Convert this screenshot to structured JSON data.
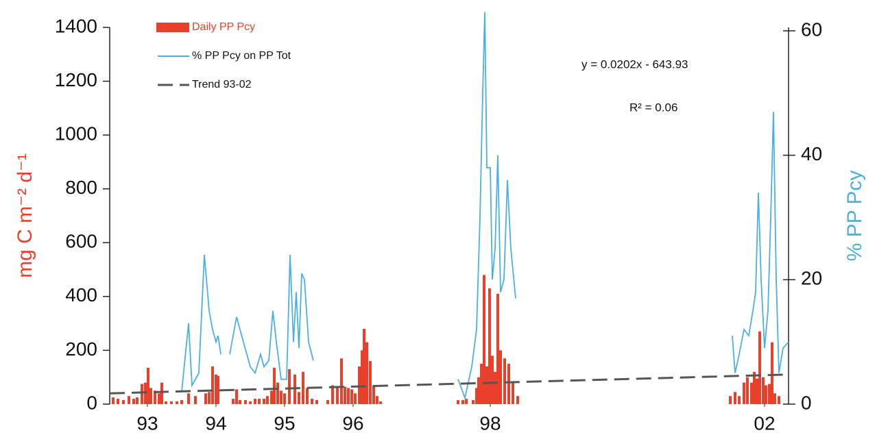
{
  "chart_data": {
    "type": "bar-line",
    "ylabel": "mg C m⁻² d⁻¹",
    "y2label": "% PP Pcy",
    "annotations": [
      "y = 0.0202x - 643.93",
      "R² = 0.06"
    ],
    "legend": "upper left",
    "xlim": [
      1992.45,
      2002.35
    ],
    "xticks": [
      {
        "value": 1993,
        "label": "93"
      },
      {
        "value": 1994,
        "label": "94"
      },
      {
        "value": 1995,
        "label": "95"
      },
      {
        "value": 1996,
        "label": "96"
      },
      {
        "value": 1998,
        "label": "98"
      },
      {
        "value": 2002,
        "label": "02"
      }
    ],
    "ylim": [
      0,
      1400
    ],
    "yticks": [
      0,
      200,
      400,
      600,
      800,
      1000,
      1200,
      1400
    ],
    "y2lim": [
      0,
      60
    ],
    "y2ticks": [
      0,
      20,
      40,
      60
    ],
    "series": [
      {
        "name": "Daily PP Pcy",
        "type": "bar",
        "color": "#e8402a",
        "x": [
          1992.5,
          1992.57,
          1992.65,
          1992.73,
          1992.8,
          1992.85,
          1992.92,
          1992.97,
          1993.01,
          1993.05,
          1993.11,
          1993.17,
          1993.21,
          1993.27,
          1993.35,
          1993.43,
          1993.5,
          1993.6,
          1993.7,
          1993.85,
          1993.9,
          1993.95,
          1994.0,
          1994.03,
          1994.25,
          1994.3,
          1994.35,
          1994.43,
          1994.5,
          1994.57,
          1994.63,
          1994.7,
          1994.75,
          1994.81,
          1994.85,
          1994.9,
          1994.95,
          1995.0,
          1995.07,
          1995.15,
          1995.21,
          1995.27,
          1995.33,
          1995.4,
          1995.47,
          1995.63,
          1995.7,
          1995.77,
          1995.83,
          1995.88,
          1995.93,
          1995.98,
          1996.03,
          1996.09,
          1996.13,
          1996.16,
          1996.2,
          1996.25,
          1996.3,
          1996.35,
          1996.4,
          1997.53,
          1997.6,
          1997.65,
          1997.75,
          1997.8,
          1997.83,
          1997.87,
          1997.91,
          1997.95,
          1997.99,
          1998.03,
          1998.07,
          1998.11,
          1998.15,
          1998.21,
          1998.27,
          1998.33,
          1998.4,
          2001.5,
          2001.57,
          2001.63,
          2001.7,
          2001.75,
          2001.81,
          2001.85,
          2001.89,
          2001.93,
          2001.98,
          2002.02,
          2002.07,
          2002.11,
          2002.15,
          2002.21
        ],
        "values": [
          25,
          20,
          15,
          30,
          20,
          25,
          75,
          80,
          135,
          60,
          50,
          40,
          80,
          10,
          10,
          10,
          15,
          40,
          30,
          40,
          45,
          140,
          110,
          105,
          20,
          55,
          15,
          15,
          10,
          20,
          20,
          20,
          30,
          50,
          135,
          80,
          50,
          40,
          130,
          110,
          45,
          120,
          60,
          20,
          15,
          15,
          70,
          60,
          170,
          65,
          60,
          55,
          40,
          140,
          200,
          280,
          230,
          160,
          70,
          30,
          10,
          15,
          15,
          20,
          15,
          60,
          100,
          150,
          480,
          140,
          430,
          180,
          120,
          410,
          200,
          170,
          150,
          80,
          30,
          30,
          45,
          30,
          80,
          100,
          80,
          120,
          95,
          270,
          100,
          70,
          75,
          230,
          40,
          30
        ]
      },
      {
        "name": "% PP Pcy on PP Tot",
        "type": "line",
        "axis": "y2",
        "color": "#4ab0e0",
        "x": [
          1993.5,
          1993.6,
          1993.65,
          1993.75,
          1993.83,
          1993.9,
          1993.95,
          1994.0,
          1994.03,
          1994.07,
          1994.12,
          1994.2,
          1994.3,
          1994.4,
          1994.5,
          1994.57,
          1994.65,
          1994.7,
          1994.77,
          1994.83,
          1994.88,
          1994.95,
          1995.03,
          1995.08,
          1995.13,
          1995.17,
          1995.21,
          1995.25,
          1995.29,
          1995.35,
          1995.42,
          1996.5,
          1997.53,
          1997.63,
          1997.73,
          1997.8,
          1997.85,
          1997.89,
          1997.92,
          1997.95,
          1998.0,
          1998.03,
          1998.07,
          1998.11,
          1998.15,
          1998.2,
          1998.25,
          1998.3,
          1998.37,
          2000.0,
          2001.53,
          2001.57,
          2001.63,
          2001.7,
          2001.77,
          2001.83,
          2001.87,
          2001.91,
          2001.95,
          2002.0,
          2002.05,
          2002.09,
          2002.13,
          2002.17,
          2002.21,
          2002.27,
          2002.35
        ],
        "values": [
          2,
          13,
          3,
          5,
          24,
          15,
          12,
          10,
          11,
          8,
          null,
          8,
          14,
          10,
          6,
          5,
          8,
          6,
          7,
          15,
          10,
          4,
          4,
          24,
          10,
          18,
          9,
          21,
          20,
          10,
          7,
          null,
          4,
          1,
          6,
          12,
          30,
          50,
          63,
          38,
          38,
          20,
          25,
          40,
          18,
          20,
          36,
          25,
          17,
          null,
          11,
          5,
          8,
          12,
          11,
          15,
          18,
          34,
          20,
          9,
          15,
          30,
          47,
          20,
          5,
          9,
          10
        ]
      },
      {
        "name": "Trend 93-02",
        "type": "dashed",
        "color": "#555555",
        "x": [
          1992.45,
          2002.35
        ],
        "values": [
          40,
          110
        ]
      }
    ]
  }
}
